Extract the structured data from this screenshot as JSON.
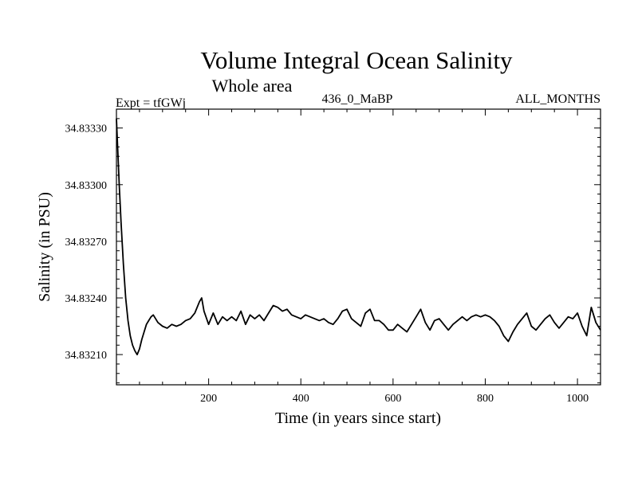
{
  "chart_data": {
    "type": "line",
    "title": "Volume Integral Ocean Salinity",
    "subtitle": "Whole area",
    "header_left": "Expt = tfGWj",
    "header_center": "436_0_MaBP",
    "header_right": "ALL_MONTHS",
    "xlabel": "Time (in years since start)",
    "ylabel": "Salinity (in PSU)",
    "xlim": [
      0,
      1050
    ],
    "ylim": [
      34.83194,
      34.8334
    ],
    "xticks": [
      200,
      400,
      600,
      800,
      1000
    ],
    "xtick_labels": [
      "200",
      "400",
      "600",
      "800",
      "1000"
    ],
    "yticks": [
      34.8321,
      34.8324,
      34.8327,
      34.833,
      34.8333
    ],
    "ytick_labels": [
      "34.83210",
      "34.83240",
      "34.83270",
      "34.83300",
      "34.83330"
    ],
    "grid": false,
    "series": [
      {
        "name": "Salinity",
        "x": [
          0,
          3,
          6,
          10,
          15,
          20,
          25,
          30,
          35,
          40,
          45,
          50,
          55,
          60,
          65,
          70,
          75,
          80,
          90,
          100,
          110,
          120,
          130,
          140,
          150,
          160,
          170,
          180,
          185,
          190,
          200,
          210,
          220,
          230,
          240,
          250,
          260,
          270,
          280,
          290,
          300,
          310,
          320,
          330,
          340,
          350,
          360,
          370,
          380,
          390,
          400,
          410,
          420,
          430,
          440,
          450,
          460,
          470,
          480,
          490,
          500,
          510,
          520,
          530,
          540,
          550,
          560,
          570,
          580,
          590,
          600,
          610,
          620,
          630,
          640,
          650,
          660,
          670,
          680,
          690,
          700,
          710,
          720,
          730,
          740,
          750,
          760,
          770,
          780,
          790,
          800,
          810,
          820,
          830,
          840,
          850,
          860,
          870,
          880,
          890,
          900,
          910,
          920,
          930,
          940,
          950,
          960,
          970,
          980,
          990,
          1000,
          1010,
          1020,
          1030,
          1040,
          1050
        ],
        "values": [
          34.83335,
          34.83318,
          34.833,
          34.8328,
          34.83258,
          34.8324,
          34.83228,
          34.8322,
          34.83215,
          34.83212,
          34.8321,
          34.83213,
          34.83218,
          34.83222,
          34.83226,
          34.83228,
          34.8323,
          34.83231,
          34.83227,
          34.83225,
          34.83224,
          34.83226,
          34.83225,
          34.83226,
          34.83228,
          34.83229,
          34.83232,
          34.83238,
          34.8324,
          34.83233,
          34.83226,
          34.83232,
          34.83226,
          34.8323,
          34.83228,
          34.8323,
          34.83228,
          34.83233,
          34.83226,
          34.83231,
          34.83229,
          34.83231,
          34.83228,
          34.83232,
          34.83236,
          34.83235,
          34.83233,
          34.83234,
          34.83231,
          34.8323,
          34.83229,
          34.83231,
          34.8323,
          34.83229,
          34.83228,
          34.83229,
          34.83227,
          34.83226,
          34.83229,
          34.83233,
          34.83234,
          34.83229,
          34.83227,
          34.83225,
          34.83232,
          34.83234,
          34.83228,
          34.83228,
          34.83226,
          34.83223,
          34.83223,
          34.83226,
          34.83224,
          34.83222,
          34.83226,
          34.8323,
          34.83234,
          34.83227,
          34.83223,
          34.83228,
          34.83229,
          34.83226,
          34.83223,
          34.83226,
          34.83228,
          34.8323,
          34.83228,
          34.8323,
          34.83231,
          34.8323,
          34.83231,
          34.8323,
          34.83228,
          34.83225,
          34.8322,
          34.83217,
          34.83222,
          34.83226,
          34.83229,
          34.83232,
          34.83225,
          34.83223,
          34.83226,
          34.83229,
          34.83231,
          34.83227,
          34.83224,
          34.83227,
          34.8323,
          34.83229,
          34.83232,
          34.83225,
          34.8322,
          34.83235,
          34.83227,
          34.83223
        ]
      }
    ]
  }
}
